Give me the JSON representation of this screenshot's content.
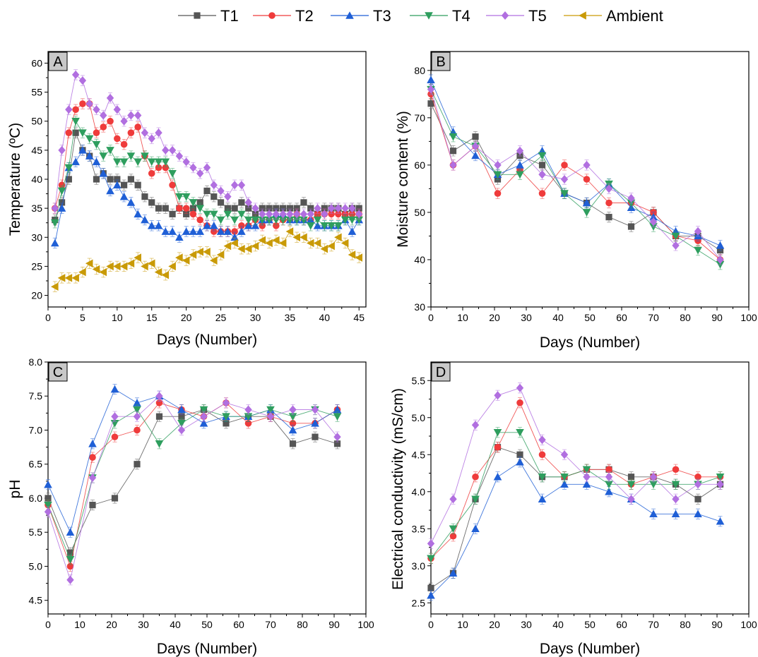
{
  "legend": [
    {
      "name": "T1",
      "color": "#555555",
      "marker": "square"
    },
    {
      "name": "T2",
      "color": "#ef3b3b",
      "marker": "circle"
    },
    {
      "name": "T3",
      "color": "#1f5fd6",
      "marker": "triangle-up"
    },
    {
      "name": "T4",
      "color": "#2e9e5e",
      "marker": "triangle-down"
    },
    {
      "name": "T5",
      "color": "#b16fe0",
      "marker": "diamond"
    },
    {
      "name": "Ambient",
      "color": "#c99a06",
      "marker": "triangle-left"
    }
  ],
  "chart_data": [
    {
      "type": "line",
      "panel": "A",
      "xlabel": "Days (Number)",
      "ylabel": "Temperature (ºC)",
      "xlim": [
        0,
        46
      ],
      "ylim": [
        18,
        62
      ],
      "xticks": [
        0,
        5,
        10,
        15,
        20,
        25,
        30,
        35,
        40,
        45
      ],
      "yticks": [
        20,
        25,
        30,
        35,
        40,
        45,
        50,
        55,
        60
      ],
      "grid": false,
      "error_bars": true,
      "x": [
        1,
        2,
        3,
        4,
        5,
        6,
        7,
        8,
        9,
        10,
        11,
        12,
        13,
        14,
        15,
        16,
        17,
        18,
        19,
        20,
        21,
        22,
        23,
        24,
        25,
        26,
        27,
        28,
        29,
        30,
        31,
        32,
        33,
        34,
        35,
        36,
        37,
        38,
        39,
        40,
        41,
        42,
        43,
        44,
        45
      ],
      "series": [
        {
          "name": "T1",
          "values": [
            33,
            36,
            40,
            48,
            45,
            44,
            40,
            41,
            40,
            40,
            39,
            40,
            39,
            37,
            36,
            35,
            35,
            34,
            35,
            34,
            35,
            36,
            38,
            37,
            36,
            35,
            35,
            36,
            35,
            34,
            35,
            35,
            35,
            35,
            35,
            35,
            36,
            35,
            34,
            35,
            35,
            35,
            34,
            35,
            35
          ]
        },
        {
          "name": "T2",
          "values": [
            35,
            39,
            48,
            52,
            53,
            53,
            48,
            49,
            50,
            47,
            46,
            48,
            49,
            44,
            41,
            42,
            42,
            39,
            35,
            35,
            34,
            33,
            32,
            31,
            31,
            31,
            31,
            32,
            32,
            33,
            32,
            33,
            32,
            33,
            33,
            34,
            33,
            33,
            34,
            34,
            34,
            34,
            34,
            34,
            34
          ]
        },
        {
          "name": "T3",
          "values": [
            29,
            35,
            42,
            43,
            45,
            44,
            43,
            41,
            38,
            39,
            37,
            36,
            34,
            33,
            32,
            32,
            31,
            31,
            30,
            31,
            31,
            31,
            32,
            32,
            31,
            31,
            30,
            31,
            32,
            32,
            33,
            33,
            34,
            34,
            33,
            33,
            33,
            33,
            32,
            32,
            32,
            32,
            33,
            31,
            33
          ]
        },
        {
          "name": "T4",
          "values": [
            32.5,
            38,
            42,
            50,
            48,
            47,
            46,
            44,
            45,
            43,
            43,
            44,
            43,
            44,
            43,
            43,
            43,
            41,
            37,
            37,
            36,
            35,
            34,
            34,
            33,
            34,
            33,
            34,
            33,
            33,
            33,
            33,
            33,
            33,
            33,
            33,
            33,
            32,
            33,
            32,
            32,
            32,
            33,
            33,
            33
          ]
        },
        {
          "name": "T5",
          "values": [
            35,
            45,
            52,
            58,
            57,
            53,
            52,
            51,
            54,
            52,
            50,
            51,
            51,
            48,
            47,
            48,
            45,
            45,
            44,
            43,
            42,
            41,
            42,
            39,
            38,
            37,
            39,
            39,
            36,
            35,
            34,
            34,
            34,
            34,
            34,
            34,
            34,
            34,
            35,
            34,
            35,
            35,
            35,
            35,
            34
          ]
        },
        {
          "name": "Ambient",
          "values": [
            21.5,
            23,
            23,
            23,
            24,
            25.5,
            24.5,
            24,
            25,
            25,
            25,
            25.5,
            26.5,
            25,
            25.5,
            24,
            23.5,
            25,
            26.5,
            26,
            27,
            27.5,
            27.5,
            26,
            27,
            28.5,
            29,
            28,
            28,
            28.5,
            29.5,
            29,
            29.5,
            29,
            31,
            30,
            30,
            29,
            29,
            28,
            28.5,
            30,
            29,
            27,
            26.5
          ]
        }
      ]
    },
    {
      "type": "line",
      "panel": "B",
      "xlabel": "Days (Number)",
      "ylabel": "Moisture content (%)",
      "xlim": [
        0,
        100
      ],
      "ylim": [
        30,
        84
      ],
      "xticks": [
        0,
        10,
        20,
        30,
        40,
        50,
        60,
        70,
        80,
        90,
        100
      ],
      "yticks": [
        30,
        40,
        50,
        60,
        70,
        80
      ],
      "grid": false,
      "error_bars": true,
      "x": [
        0,
        7,
        14,
        21,
        28,
        35,
        42,
        49,
        56,
        63,
        70,
        77,
        84,
        91
      ],
      "series": [
        {
          "name": "T1",
          "values": [
            73,
            63,
            66,
            57,
            62,
            60,
            54,
            52,
            49,
            47,
            50,
            45,
            45,
            42
          ]
        },
        {
          "name": "T2",
          "values": [
            75,
            60,
            64,
            54,
            59,
            54,
            60,
            57,
            52,
            52,
            50,
            45,
            44,
            40
          ]
        },
        {
          "name": "T3",
          "values": [
            78,
            67,
            62,
            58,
            60,
            63,
            54,
            52,
            56,
            51,
            49,
            46,
            45,
            43
          ]
        },
        {
          "name": "T4",
          "values": [
            76,
            66,
            64,
            58,
            58,
            62,
            54,
            50,
            56,
            52,
            47,
            45,
            42,
            39
          ]
        },
        {
          "name": "T5",
          "values": [
            76,
            60,
            64,
            60,
            63,
            58,
            57,
            60,
            55,
            53,
            48,
            43,
            46,
            40
          ]
        }
      ]
    },
    {
      "type": "line",
      "panel": "C",
      "xlabel": "Days (Number)",
      "ylabel": "pH",
      "xlim": [
        0,
        100
      ],
      "ylim": [
        4.3,
        8.0
      ],
      "xticks": [
        0,
        10,
        20,
        30,
        40,
        50,
        60,
        70,
        80,
        90,
        100
      ],
      "yticks": [
        4.5,
        5.0,
        5.5,
        6.0,
        6.5,
        7.0,
        7.5,
        8.0
      ],
      "grid": false,
      "error_bars": true,
      "x": [
        0,
        7,
        14,
        21,
        28,
        35,
        42,
        49,
        56,
        63,
        70,
        77,
        84,
        91
      ],
      "series": [
        {
          "name": "T1",
          "values": [
            6.0,
            5.2,
            5.9,
            6.0,
            6.5,
            7.2,
            7.2,
            7.3,
            7.1,
            7.2,
            7.2,
            6.8,
            6.9,
            6.8
          ]
        },
        {
          "name": "T2",
          "values": [
            5.9,
            5.0,
            6.6,
            6.9,
            7.0,
            7.4,
            7.3,
            7.2,
            7.4,
            7.1,
            7.2,
            7.1,
            7.1,
            7.3
          ]
        },
        {
          "name": "T3",
          "values": [
            6.2,
            5.5,
            6.8,
            7.6,
            7.4,
            7.5,
            7.3,
            7.1,
            7.2,
            7.2,
            7.3,
            7.0,
            7.1,
            7.3
          ]
        },
        {
          "name": "T4",
          "values": [
            5.9,
            5.1,
            6.3,
            7.1,
            7.3,
            6.8,
            7.1,
            7.3,
            7.2,
            7.2,
            7.3,
            7.2,
            7.3,
            7.2
          ]
        },
        {
          "name": "T5",
          "values": [
            5.8,
            4.8,
            6.3,
            7.2,
            7.2,
            7.5,
            7.0,
            7.2,
            7.4,
            7.3,
            7.2,
            7.3,
            7.3,
            6.9
          ]
        }
      ]
    },
    {
      "type": "line",
      "panel": "D",
      "xlabel": "Days (Number)",
      "ylabel": "Electrical conductivity (mS/cm)",
      "xlim": [
        0,
        100
      ],
      "ylim": [
        2.35,
        5.75
      ],
      "xticks": [
        0,
        10,
        20,
        30,
        40,
        50,
        60,
        70,
        80,
        90,
        100
      ],
      "yticks": [
        2.5,
        3.0,
        3.5,
        4.0,
        4.5,
        5.0,
        5.5
      ],
      "grid": false,
      "error_bars": true,
      "x": [
        0,
        7,
        14,
        21,
        28,
        35,
        42,
        49,
        56,
        63,
        70,
        77,
        84,
        91
      ],
      "series": [
        {
          "name": "T1",
          "values": [
            2.7,
            2.9,
            3.9,
            4.6,
            4.5,
            4.2,
            4.2,
            4.3,
            4.3,
            4.2,
            4.2,
            4.1,
            3.9,
            4.1
          ]
        },
        {
          "name": "T2",
          "values": [
            3.1,
            3.4,
            4.2,
            4.6,
            5.2,
            4.5,
            4.2,
            4.3,
            4.3,
            4.1,
            4.2,
            4.3,
            4.2,
            4.2
          ]
        },
        {
          "name": "T3",
          "values": [
            2.6,
            2.9,
            3.5,
            4.2,
            4.4,
            3.9,
            4.1,
            4.1,
            4.0,
            3.9,
            3.7,
            3.7,
            3.7,
            3.6
          ]
        },
        {
          "name": "T4",
          "values": [
            3.1,
            3.5,
            3.9,
            4.8,
            4.8,
            4.2,
            4.2,
            4.3,
            4.1,
            4.1,
            4.1,
            4.1,
            4.1,
            4.2
          ]
        },
        {
          "name": "T5",
          "values": [
            3.3,
            3.9,
            4.9,
            5.3,
            5.4,
            4.7,
            4.5,
            4.2,
            4.2,
            3.9,
            4.2,
            3.9,
            4.1,
            4.1
          ]
        }
      ]
    }
  ]
}
